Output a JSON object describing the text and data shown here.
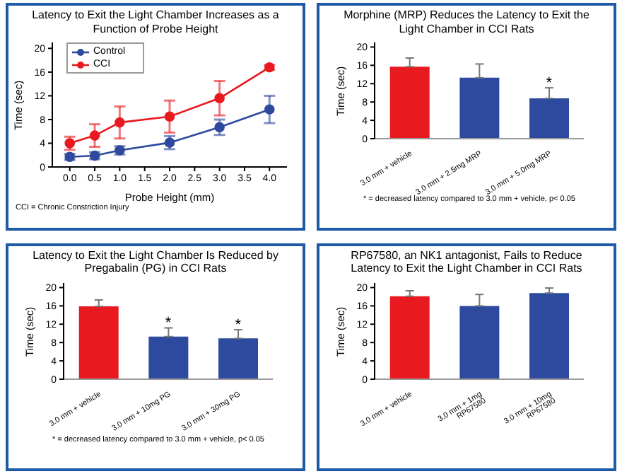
{
  "chart_data": [
    {
      "type": "line",
      "title": "Latency to Exit the Light Chamber Increases as a Function of Probe Height",
      "xlabel": "Probe Height (mm)",
      "ylabel": "Time (sec)",
      "x": [
        0,
        0.5,
        1,
        2,
        3,
        4
      ],
      "xlim": [
        -0.35,
        4.35
      ],
      "xticks": [
        {
          "value": 0,
          "label": "0.0"
        },
        {
          "value": 0.5,
          "label": "0.5"
        },
        {
          "value": 1,
          "label": "1.0"
        },
        {
          "value": 1.5,
          "label": "1.5"
        },
        {
          "value": 2,
          "label": "2.0"
        },
        {
          "value": 2.5,
          "label": "2.5"
        },
        {
          "value": 3,
          "label": "3.0"
        },
        {
          "value": 3.5,
          "label": "3.5"
        },
        {
          "value": 4,
          "label": "4.0"
        }
      ],
      "ylim": [
        0,
        21
      ],
      "yticks": [
        0,
        4,
        8,
        12,
        16,
        20
      ],
      "legend": "top left",
      "marker": "circle",
      "grid": false,
      "series": [
        {
          "name": "Control",
          "color": "#2e4a9e",
          "values": [
            1.7,
            1.9,
            2.8,
            4.1,
            6.7,
            9.7
          ],
          "errors": [
            0.5,
            0.6,
            0.7,
            1.1,
            1.3,
            2.3
          ]
        },
        {
          "name": "CCI",
          "color": "#e8191f",
          "values": [
            4.0,
            5.3,
            7.5,
            8.5,
            11.6,
            16.8
          ],
          "errors": [
            1.1,
            1.9,
            2.7,
            2.7,
            2.9,
            0.4
          ]
        }
      ],
      "annotations": [
        "CCI = Chronic Constriction Injury"
      ]
    },
    {
      "type": "bar",
      "title": "Morphine (MRP) Reduces the Latency to Exit the Light Chamber in CCI Rats",
      "ylabel": "Time (sec)",
      "categories": [
        "3.0 mm + vehicle",
        "3.0 mm + 2.5mg MRP",
        "3.0 mm + 5.0mg MRP"
      ],
      "values": [
        15.7,
        13.3,
        8.8
      ],
      "colors": [
        "#e8191f",
        "#2e4a9e",
        "#2e4a9e"
      ],
      "errors": [
        [
          15.7,
          17.6
        ],
        [
          13.3,
          16.3
        ],
        [
          8.8,
          11.1
        ]
      ],
      "ylim": [
        0,
        21
      ],
      "yticks": [
        0,
        4,
        8,
        12,
        16,
        20
      ],
      "grid": false,
      "annotations": [
        {
          "text": "*",
          "x": "3.0 mm + 5.0mg MRP",
          "y": 8.8
        },
        "* = decreased latency compared to 3.0 mm + vehicle, p< 0.05"
      ]
    },
    {
      "type": "bar",
      "title": "Latency to Exit the Light Chamber Is Reduced by Pregabalin (PG) in CCI Rats",
      "ylabel": "Time (sec)",
      "categories": [
        "3.0 mm + vehicle",
        "3.0 mm + 10mg PG",
        "3.0 mm + 30mg PG"
      ],
      "values": [
        15.9,
        9.3,
        8.9
      ],
      "colors": [
        "#e8191f",
        "#2e4a9e",
        "#2e4a9e"
      ],
      "errors": [
        [
          15.9,
          17.3
        ],
        [
          9.3,
          11.2
        ],
        [
          8.9,
          10.8
        ]
      ],
      "ylim": [
        0,
        21
      ],
      "yticks": [
        0,
        4,
        8,
        12,
        16,
        20
      ],
      "grid": false,
      "annotations": [
        {
          "text": "*",
          "x": "3.0 mm + 10mg PG",
          "y": 9.3
        },
        {
          "text": "*",
          "x": "3.0 mm + 30mg PG",
          "y": 8.9
        },
        "* = decreased latency compared to 3.0 mm + vehicle, p< 0.05"
      ]
    },
    {
      "type": "bar",
      "title": "RP67580, an NK1 antagonist, Fails to Reduce Latency to Exit the Light Chamber in CCI Rats",
      "ylabel": "Time (sec)",
      "categories": [
        "3.0 mm + vehicle",
        "3.0 mm + 1mg RP67580",
        "3.0 mm + 10mg RP67580"
      ],
      "values": [
        18.1,
        16.0,
        18.8
      ],
      "colors": [
        "#e8191f",
        "#2e4a9e",
        "#2e4a9e"
      ],
      "errors": [
        [
          18.1,
          19.3
        ],
        [
          16.0,
          18.5
        ],
        [
          18.8,
          19.9
        ]
      ],
      "ylim": [
        0,
        21
      ],
      "yticks": [
        0,
        4,
        8,
        12,
        16,
        20
      ],
      "grid": false
    }
  ]
}
